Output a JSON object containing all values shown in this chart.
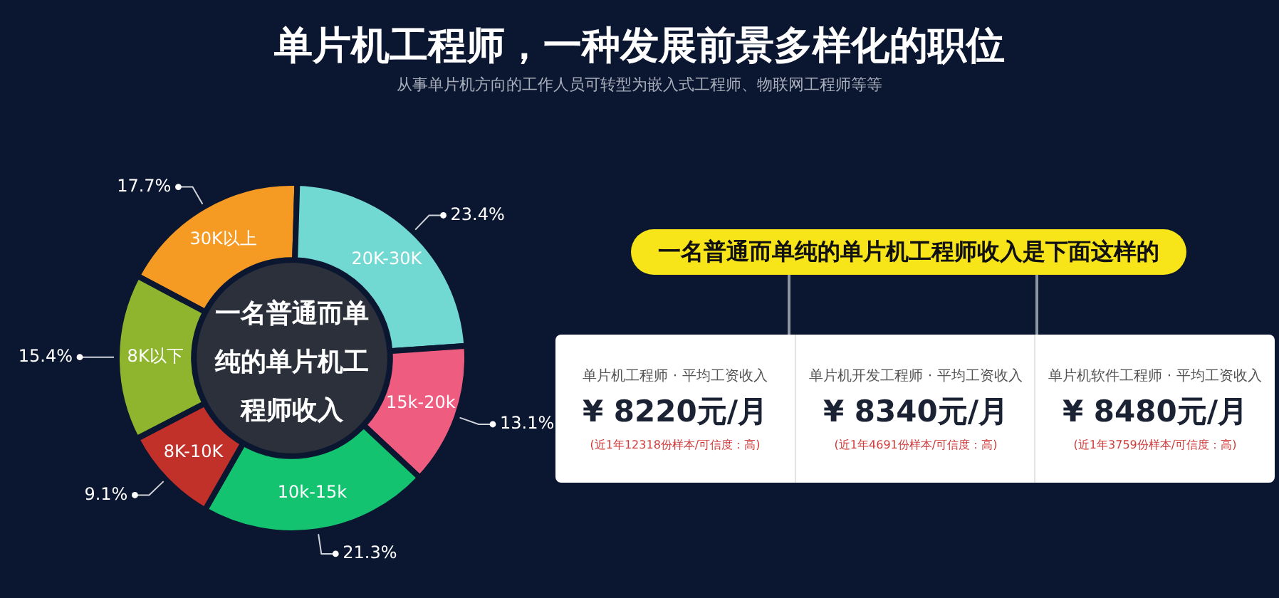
{
  "chart_data": [
    {
      "type": "donut",
      "title": "单片机工程师，一种发展前景多样化的职位",
      "subtitle": "从事单片机方向的工作人员可转型为嵌入式工程师、物联网工程师等等",
      "categories": [
        "30K以上",
        "20K-30K",
        "15k-20k",
        "10k-15k",
        "8K-10K",
        "8K以下"
      ],
      "values": [
        17.7,
        23.4,
        13.1,
        21.3,
        9.1,
        15.4
      ],
      "value_labels": [
        "17.7%",
        "23.4%",
        "13.1%",
        "21.3%",
        "9.1%",
        "15.4%"
      ],
      "colors": [
        "#f59a23",
        "#72d8d2",
        "#ee5d80",
        "#13c36f",
        "#c2302a",
        "#8fb52e"
      ],
      "annotations": [
        "一名普通而单纯的单片机工程师收入"
      ]
    },
    {
      "type": "other",
      "title": "一名普通而单纯的单片机工程师收入是下面这样的",
      "annotations": [
        "单片机工程师 · 平均工资收入",
        "¥ 8220元/月",
        "(近1年12318份样本/可信度：高)",
        "单片机开发工程师 · 平均工资收入",
        "¥ 8340元/月",
        "(近1年4691份样本/可信度：高)",
        "单片机软件工程师 · 平均工资收入",
        "¥ 8480元/月",
        "(近1年3759份样本/可信度：高)"
      ]
    }
  ]
}
